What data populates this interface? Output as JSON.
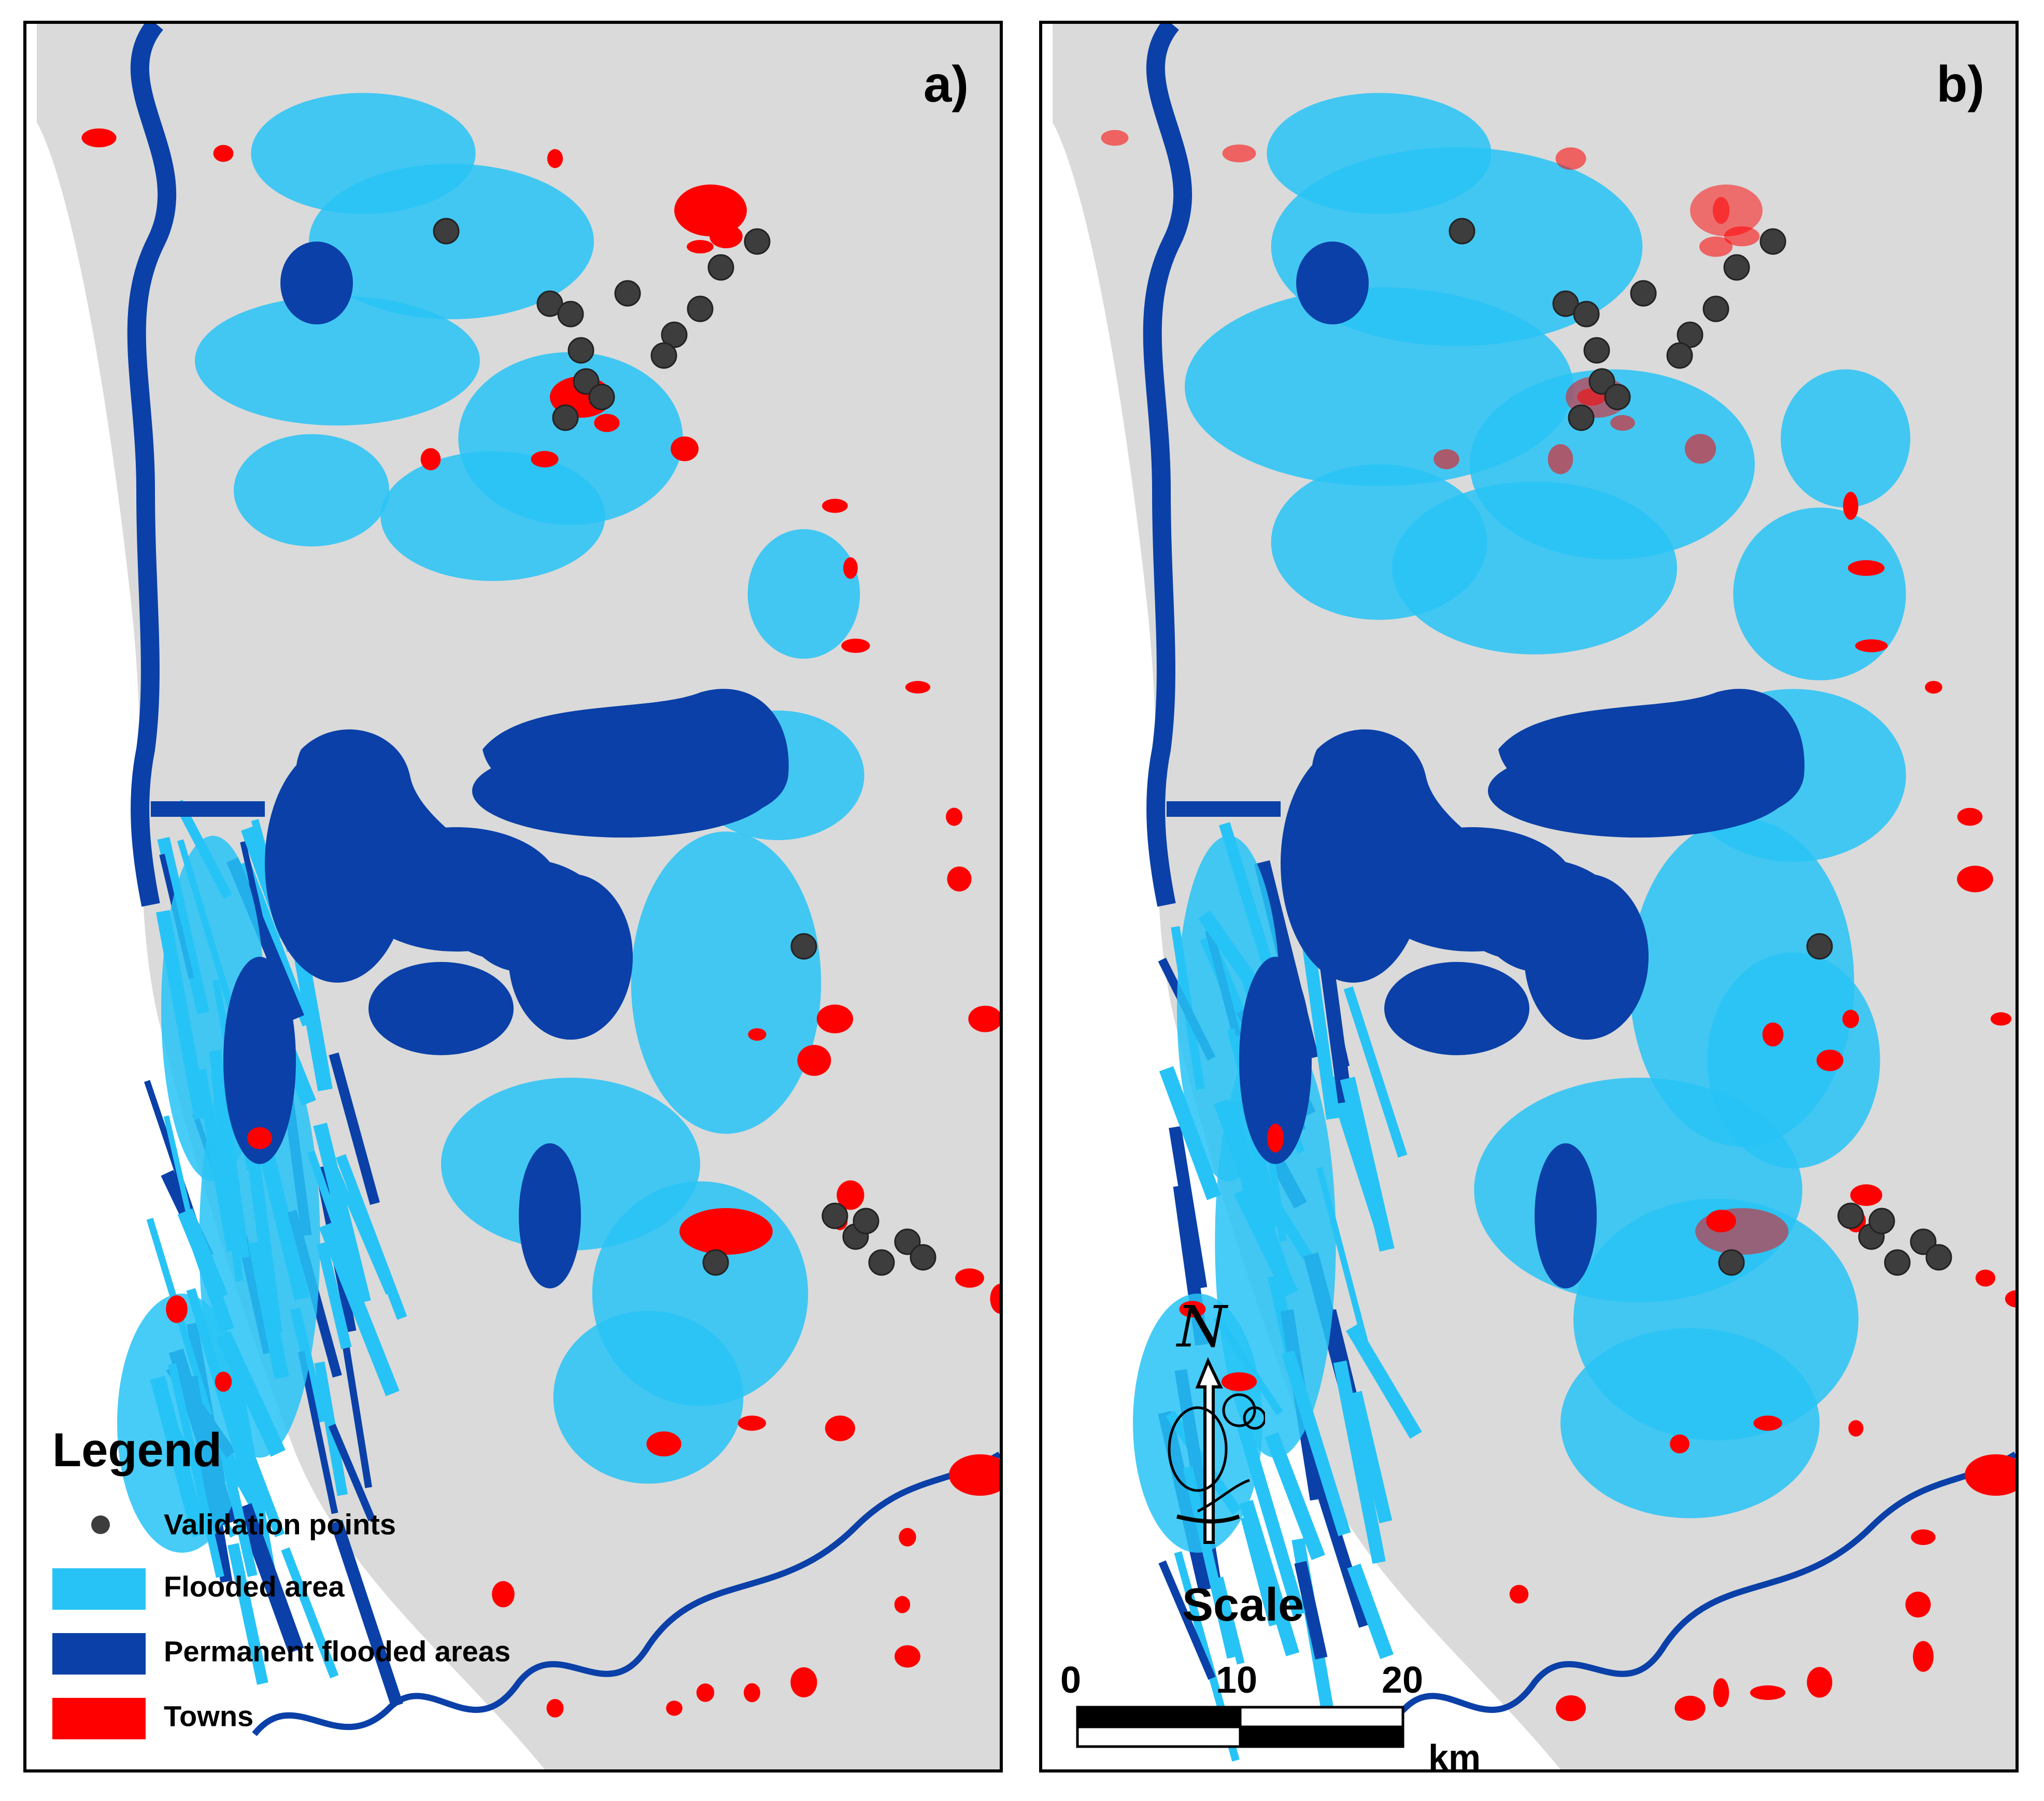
{
  "colors": {
    "land": "#dadada",
    "sea": "#ffffff",
    "flooded_area": "#27c3f6",
    "permanent_flooded": "#0a40a8",
    "towns": "#ff0000",
    "validation_points": "#3d3d3d"
  },
  "panels": [
    {
      "id": "a",
      "label": "a)"
    },
    {
      "id": "b",
      "label": "b)"
    }
  ],
  "legend": {
    "title": "Legend",
    "items": [
      {
        "label": "Validation points",
        "symbol": "circle",
        "color": "#3d3d3d"
      },
      {
        "label": "Flooded area",
        "symbol": "box",
        "color": "#27c3f6"
      },
      {
        "label": "Permanent flooded areas",
        "symbol": "box",
        "color": "#0a40a8"
      },
      {
        "label": "Towns",
        "symbol": "box",
        "color": "#ff0000"
      }
    ]
  },
  "north_arrow": {
    "letter": "N",
    "icon": "north-arrow-icon"
  },
  "scale_bar": {
    "title": "Scale",
    "ticks": [
      "0",
      "10",
      "20"
    ],
    "unit": "km"
  }
}
